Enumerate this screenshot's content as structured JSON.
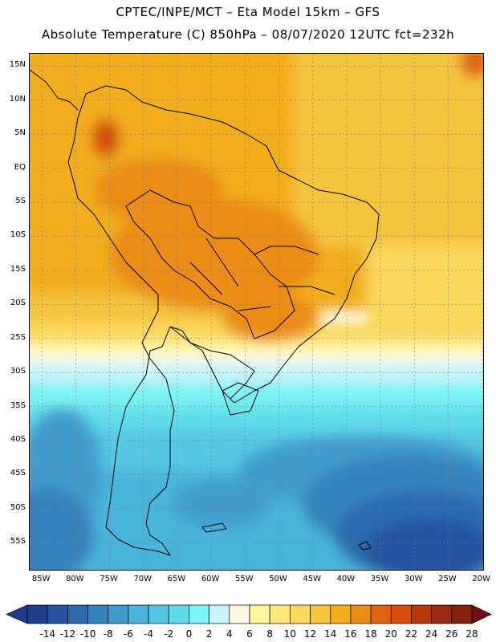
{
  "header": {
    "line1": "CPTEC/INPE/MCT –   Eta Model 15km – GFS",
    "line2": "Absolute Temperature (C) 850hPa – 08/07/2020 12UTC fct=232h"
  },
  "map": {
    "lat_labels": [
      "15N",
      "10N",
      "5N",
      "EQ",
      "5S",
      "10S",
      "15S",
      "20S",
      "25S",
      "30S",
      "35S",
      "40S",
      "45S",
      "50S",
      "55S"
    ],
    "lon_labels": [
      "85W",
      "80W",
      "75W",
      "70W",
      "65W",
      "60W",
      "55W",
      "50W",
      "45W",
      "40W",
      "35W",
      "30W",
      "25W",
      "20W"
    ],
    "lat_values": [
      15,
      10,
      5,
      0,
      -5,
      -10,
      -15,
      -20,
      -25,
      -30,
      -35,
      -40,
      -45,
      -50,
      -55
    ],
    "lon_values": [
      -85,
      -80,
      -75,
      -70,
      -65,
      -60,
      -55,
      -50,
      -45,
      -40,
      -35,
      -30,
      -25,
      -20
    ]
  },
  "colorbar": {
    "labels": [
      "-14",
      "-12",
      "-10",
      "-8",
      "-6",
      "-4",
      "-2",
      "0",
      "2",
      "4",
      "6",
      "8",
      "10",
      "12",
      "14",
      "16",
      "18",
      "20",
      "22",
      "24",
      "26",
      "28"
    ],
    "low_color": "#1f3d8c",
    "high_color": "#6e0f15",
    "colors": [
      "#1f3d8c",
      "#2553a0",
      "#2c6aae",
      "#3583bd",
      "#3f9ccd",
      "#4ab4da",
      "#54c8e3",
      "#5edcea",
      "#7af4f5",
      "#c8f4fa",
      "#fff8e2",
      "#fff59a",
      "#ffe97a",
      "#fcd85c",
      "#f5c53c",
      "#f2ad1a",
      "#eb8c17",
      "#e06312",
      "#d64d0e",
      "#b7380c",
      "#9c2a10",
      "#82210f",
      "#6e0f15"
    ]
  }
}
